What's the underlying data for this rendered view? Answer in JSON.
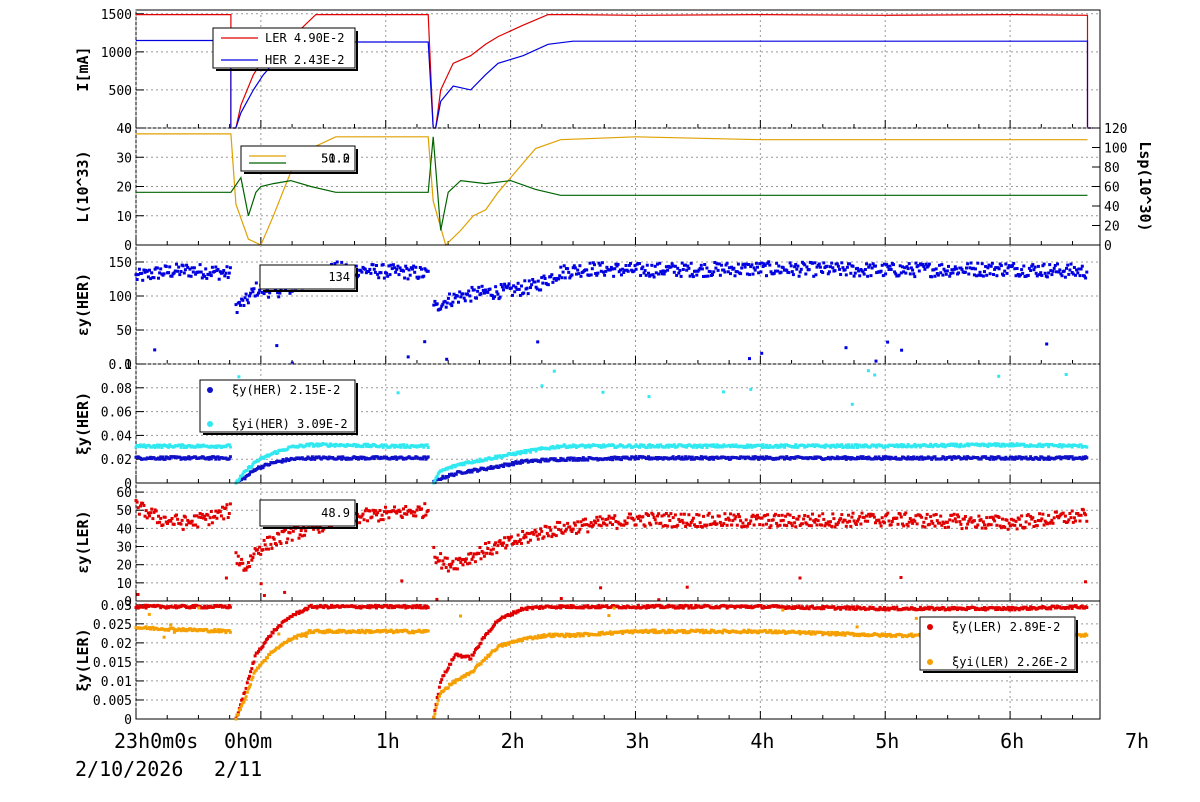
{
  "time_axis": {
    "ticks": [
      "23h0m0s",
      "0h0m",
      "1h",
      "2h",
      "3h",
      "4h",
      "5h",
      "6h",
      "7h"
    ],
    "date_left": "2/10/2026",
    "date_right": "2/11"
  },
  "colors": {
    "red": "#e00000",
    "blue": "#0000e0",
    "gold": "#e0a000",
    "green": "#006400",
    "cyan": "#30e8f0",
    "orange": "#f5a000",
    "darkblue": "#1010c8"
  },
  "chart_data": [
    {
      "type": "line",
      "id": "current",
      "ylabel": "I[mA]",
      "ylim": [
        0,
        1550
      ],
      "ytick_labels": [
        "0",
        "500",
        "1000",
        "1500"
      ],
      "legend": [
        {
          "name": "LER",
          "value": "4.90E-2",
          "color": "#e00000"
        },
        {
          "name": "HER",
          "value": "2.43E-2",
          "color": "#0000e0"
        }
      ],
      "series": [
        {
          "name": "LER",
          "color": "#e00000",
          "x": [
            0,
            0.38,
            0.38,
            0.4,
            0.42,
            0.47,
            0.51,
            0.55,
            0.61,
            0.66,
            0.72,
            0.78,
            1.0,
            1.17,
            1.19,
            1.2,
            1.22,
            1.27,
            1.34,
            1.4,
            1.45,
            1.55,
            1.65,
            1.75,
            2.0,
            2.5,
            3.0,
            3.5,
            3.81,
            3.81,
            3.83
          ],
          "y": [
            1490,
            1490,
            0,
            0,
            300,
            700,
            900,
            1050,
            1200,
            1300,
            1490,
            1490,
            1490,
            1490,
            0,
            0,
            500,
            850,
            950,
            1100,
            1200,
            1350,
            1490,
            1490,
            1480,
            1490,
            1480,
            1490,
            1480,
            0,
            0
          ]
        },
        {
          "name": "HER",
          "color": "#0000e0",
          "x": [
            0,
            0.38,
            0.38,
            0.4,
            0.42,
            0.47,
            0.51,
            0.55,
            0.61,
            0.66,
            0.72,
            0.78,
            1.0,
            1.17,
            1.19,
            1.2,
            1.22,
            1.27,
            1.34,
            1.4,
            1.45,
            1.55,
            1.65,
            1.75,
            2.0,
            2.5,
            3.0,
            3.5,
            3.81,
            3.81,
            3.83
          ],
          "y": [
            1150,
            1150,
            0,
            0,
            200,
            500,
            700,
            850,
            950,
            1050,
            1130,
            1130,
            1130,
            1130,
            0,
            0,
            350,
            550,
            500,
            700,
            850,
            950,
            1100,
            1140,
            1140,
            1140,
            1140,
            1140,
            1140,
            0,
            0
          ]
        }
      ]
    },
    {
      "type": "line",
      "id": "luminosity",
      "ylabel": "L(10^33)",
      "ylim": [
        0,
        40
      ],
      "ytick_labels": [
        "0",
        "10",
        "20",
        "30",
        "40"
      ],
      "ylabel_right": "Lsp(10^30)",
      "ylim_right": [
        0,
        120
      ],
      "ytick_labels_right": [
        "0",
        "20",
        "40",
        "60",
        "80",
        "100",
        "120"
      ],
      "legend": [
        {
          "name": "L",
          "value": "51.0",
          "color": "#e0a000"
        },
        {
          "name": "Lsp",
          "value": "50.2",
          "color": "#006400"
        }
      ],
      "series": [
        {
          "name": "L",
          "color": "#e0a000",
          "x": [
            0,
            0.38,
            0.4,
            0.45,
            0.5,
            0.55,
            0.62,
            0.7,
            0.8,
            1.0,
            1.17,
            1.19,
            1.24,
            1.3,
            1.35,
            1.4,
            1.45,
            1.52,
            1.6,
            1.7,
            2.0,
            2.5,
            3.0,
            3.5,
            3.81
          ],
          "y": [
            38,
            38,
            14,
            2,
            0,
            10,
            25,
            33,
            37,
            37,
            37,
            15,
            0,
            5,
            10,
            12,
            18,
            25,
            33,
            36,
            37,
            36,
            36,
            36,
            36
          ]
        },
        {
          "name": "Lsp",
          "color": "#006400",
          "x": [
            0,
            0.38,
            0.42,
            0.45,
            0.48,
            0.5,
            0.55,
            0.62,
            0.7,
            0.8,
            1.0,
            1.17,
            1.19,
            1.22,
            1.25,
            1.3,
            1.4,
            1.5,
            1.6,
            1.7,
            2.0,
            2.5,
            3.0,
            3.5,
            3.81
          ],
          "y": [
            18,
            18,
            23,
            10,
            18,
            20,
            21,
            22,
            20,
            18,
            18,
            18,
            37,
            5,
            18,
            22,
            21,
            22,
            19,
            17,
            17,
            17,
            17,
            17,
            17
          ]
        }
      ]
    },
    {
      "type": "scatter",
      "id": "eps_her",
      "ylabel": "εy(HER)",
      "ylim": [
        0,
        175
      ],
      "ytick_labels": [
        "0",
        "50",
        "100",
        "150"
      ],
      "legend": [
        {
          "value": "134",
          "color": "#0000e0"
        }
      ],
      "series": [
        {
          "color": "#0000e0",
          "x": [
            0,
            0.1,
            0.2,
            0.3,
            0.38,
            0.4,
            0.44,
            0.48,
            0.55,
            0.62,
            0.7,
            0.8,
            0.9,
            1.0,
            1.1,
            1.17,
            1.2,
            1.22,
            1.3,
            1.4,
            1.5,
            1.6,
            1.7,
            1.8,
            2.0,
            2.5,
            3.0,
            3.5,
            3.81
          ],
          "y": [
            128,
            135,
            138,
            136,
            133,
            85,
            92,
            110,
            108,
            112,
            125,
            140,
            138,
            136,
            135,
            132,
            80,
            90,
            100,
            105,
            108,
            115,
            135,
            140,
            138,
            140,
            138,
            140,
            136
          ]
        }
      ]
    },
    {
      "type": "scatter",
      "id": "xi_her",
      "ylabel": "ξy(HER)",
      "ylim": [
        0,
        0.1
      ],
      "ytick_labels": [
        "0",
        "0.02",
        "0.04",
        "0.06",
        "0.08",
        "0.1"
      ],
      "legend": [
        {
          "name": "ξy(HER)",
          "value": "2.15E-2",
          "color": "#1010c8"
        },
        {
          "name": "ξyi(HER)",
          "value": "3.09E-2",
          "color": "#30e8f0"
        }
      ],
      "series": [
        {
          "name": "ξy(HER)",
          "color": "#1010c8",
          "x": [
            0,
            0.38,
            0.4,
            0.44,
            0.48,
            0.55,
            0.62,
            0.7,
            0.8,
            1.0,
            1.17,
            1.19,
            1.22,
            1.3,
            1.4,
            1.55,
            1.7,
            2.0,
            2.5,
            3.0,
            3.5,
            3.81
          ],
          "y": [
            0.021,
            0.021,
            0.0,
            0.005,
            0.012,
            0.017,
            0.02,
            0.021,
            0.021,
            0.021,
            0.021,
            0.0,
            0.004,
            0.009,
            0.012,
            0.018,
            0.02,
            0.021,
            0.021,
            0.021,
            0.021,
            0.021
          ]
        },
        {
          "name": "ξyi(HER)",
          "color": "#30e8f0",
          "x": [
            0,
            0.38,
            0.4,
            0.44,
            0.48,
            0.55,
            0.62,
            0.7,
            0.8,
            1.0,
            1.17,
            1.19,
            1.22,
            1.3,
            1.4,
            1.55,
            1.7,
            2.0,
            2.5,
            3.0,
            3.5,
            3.81
          ],
          "y": [
            0.031,
            0.031,
            0.0,
            0.01,
            0.018,
            0.025,
            0.03,
            0.032,
            0.032,
            0.031,
            0.031,
            0.0,
            0.01,
            0.016,
            0.02,
            0.026,
            0.031,
            0.031,
            0.031,
            0.031,
            0.032,
            0.031
          ]
        }
      ]
    },
    {
      "type": "scatter",
      "id": "eps_ler",
      "ylabel": "εy(LER)",
      "ylim": [
        0,
        65
      ],
      "ytick_labels": [
        "0",
        "10",
        "20",
        "30",
        "40",
        "50",
        "60"
      ],
      "legend": [
        {
          "value": "48.9",
          "color": "#e00000"
        }
      ],
      "series": [
        {
          "color": "#e00000",
          "x": [
            0,
            0.1,
            0.2,
            0.3,
            0.38,
            0.4,
            0.44,
            0.48,
            0.55,
            0.62,
            0.7,
            0.8,
            1.0,
            1.17,
            1.2,
            1.24,
            1.3,
            1.4,
            1.5,
            1.6,
            1.7,
            2.0,
            2.5,
            3.0,
            3.5,
            3.81
          ],
          "y": [
            52,
            45,
            43,
            46,
            50,
            25,
            18,
            28,
            33,
            37,
            40,
            45,
            48,
            50,
            25,
            20,
            22,
            28,
            32,
            37,
            40,
            45,
            44,
            45,
            43,
            47
          ]
        }
      ]
    },
    {
      "type": "scatter",
      "id": "xi_ler",
      "ylabel": "ξy(LER)",
      "ylim": [
        0,
        0.031
      ],
      "ytick_labels": [
        "0",
        "0.005",
        "0.01",
        "0.015",
        "0.02",
        "0.025",
        "0.03"
      ],
      "legend": [
        {
          "name": "ξy(LER)",
          "value": "2.89E-2",
          "color": "#e00000"
        },
        {
          "name": "ξyi(LER)",
          "value": "2.26E-2",
          "color": "#f5a000"
        }
      ],
      "series": [
        {
          "name": "ξy(LER)",
          "color": "#e00000",
          "x": [
            0,
            0.38,
            0.4,
            0.44,
            0.48,
            0.55,
            0.62,
            0.7,
            0.8,
            1.0,
            1.17,
            1.19,
            1.22,
            1.28,
            1.34,
            1.4,
            1.45,
            1.55,
            1.65,
            1.75,
            2.0,
            2.5,
            3.0,
            3.5,
            3.81
          ],
          "y": [
            0.0295,
            0.0295,
            0.0,
            0.008,
            0.017,
            0.023,
            0.027,
            0.0295,
            0.0295,
            0.0295,
            0.0295,
            0.0,
            0.01,
            0.017,
            0.016,
            0.022,
            0.026,
            0.029,
            0.0295,
            0.0295,
            0.0295,
            0.0295,
            0.029,
            0.029,
            0.0295
          ]
        },
        {
          "name": "ξyi(LER)",
          "color": "#f5a000",
          "x": [
            0,
            0.38,
            0.4,
            0.44,
            0.48,
            0.55,
            0.62,
            0.7,
            0.8,
            1.0,
            1.17,
            1.19,
            1.22,
            1.28,
            1.34,
            1.4,
            1.45,
            1.55,
            1.65,
            1.75,
            2.0,
            2.5,
            3.0,
            3.5,
            3.81
          ],
          "y": [
            0.024,
            0.023,
            0.0,
            0.006,
            0.013,
            0.018,
            0.021,
            0.023,
            0.023,
            0.023,
            0.023,
            0.0,
            0.007,
            0.01,
            0.012,
            0.016,
            0.019,
            0.021,
            0.022,
            0.022,
            0.023,
            0.023,
            0.022,
            0.022,
            0.022
          ]
        }
      ]
    }
  ]
}
